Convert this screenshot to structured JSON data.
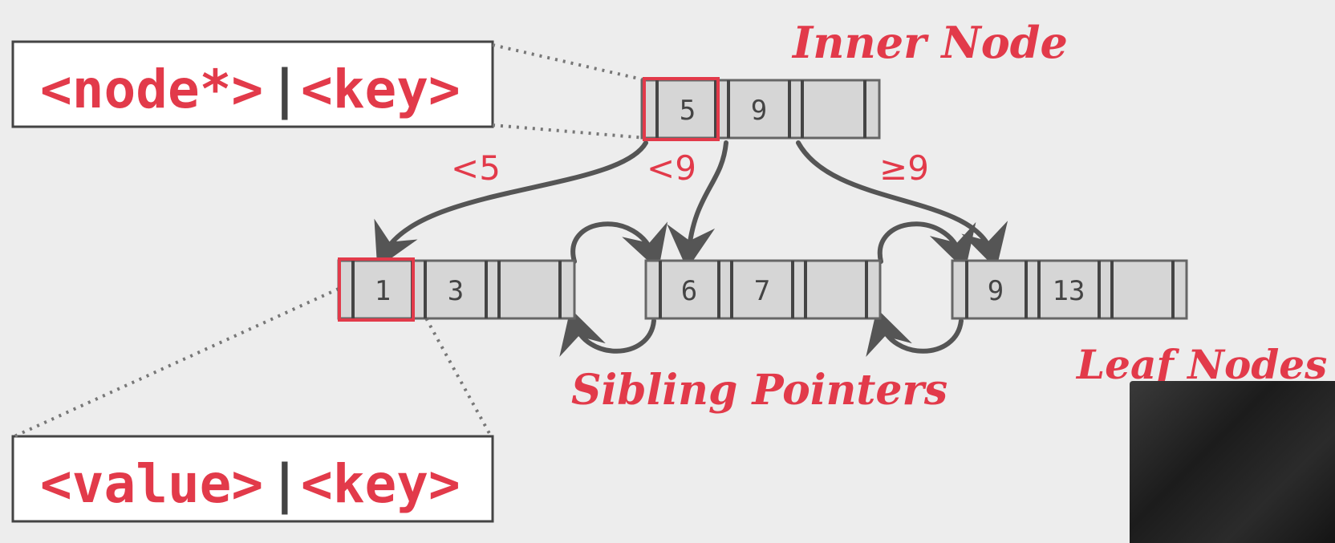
{
  "colors": {
    "background": "#ededed",
    "accent_red": "#e23a4a",
    "node_fill": "#d6d6d6",
    "border": "#666666",
    "arrow": "#555555"
  },
  "labels": {
    "inner_node": "Inner Node",
    "leaf_nodes": "Leaf Nodes",
    "sibling_pointers": "Sibling Pointers",
    "branch_lt5": "<5",
    "branch_lt9": "<9",
    "branch_ge9": "≥9"
  },
  "legend": {
    "inner_left": "<node*>",
    "inner_sep": "|",
    "inner_right": "<key>",
    "leaf_left": "<value>",
    "leaf_sep": "|",
    "leaf_right": "<key>"
  },
  "inner_node": {
    "keys": [
      "5",
      "9",
      ""
    ]
  },
  "leaf_nodes": [
    {
      "keys": [
        "1",
        "3",
        ""
      ]
    },
    {
      "keys": [
        "6",
        "7",
        ""
      ]
    },
    {
      "keys": [
        "9",
        "13",
        ""
      ]
    }
  ]
}
